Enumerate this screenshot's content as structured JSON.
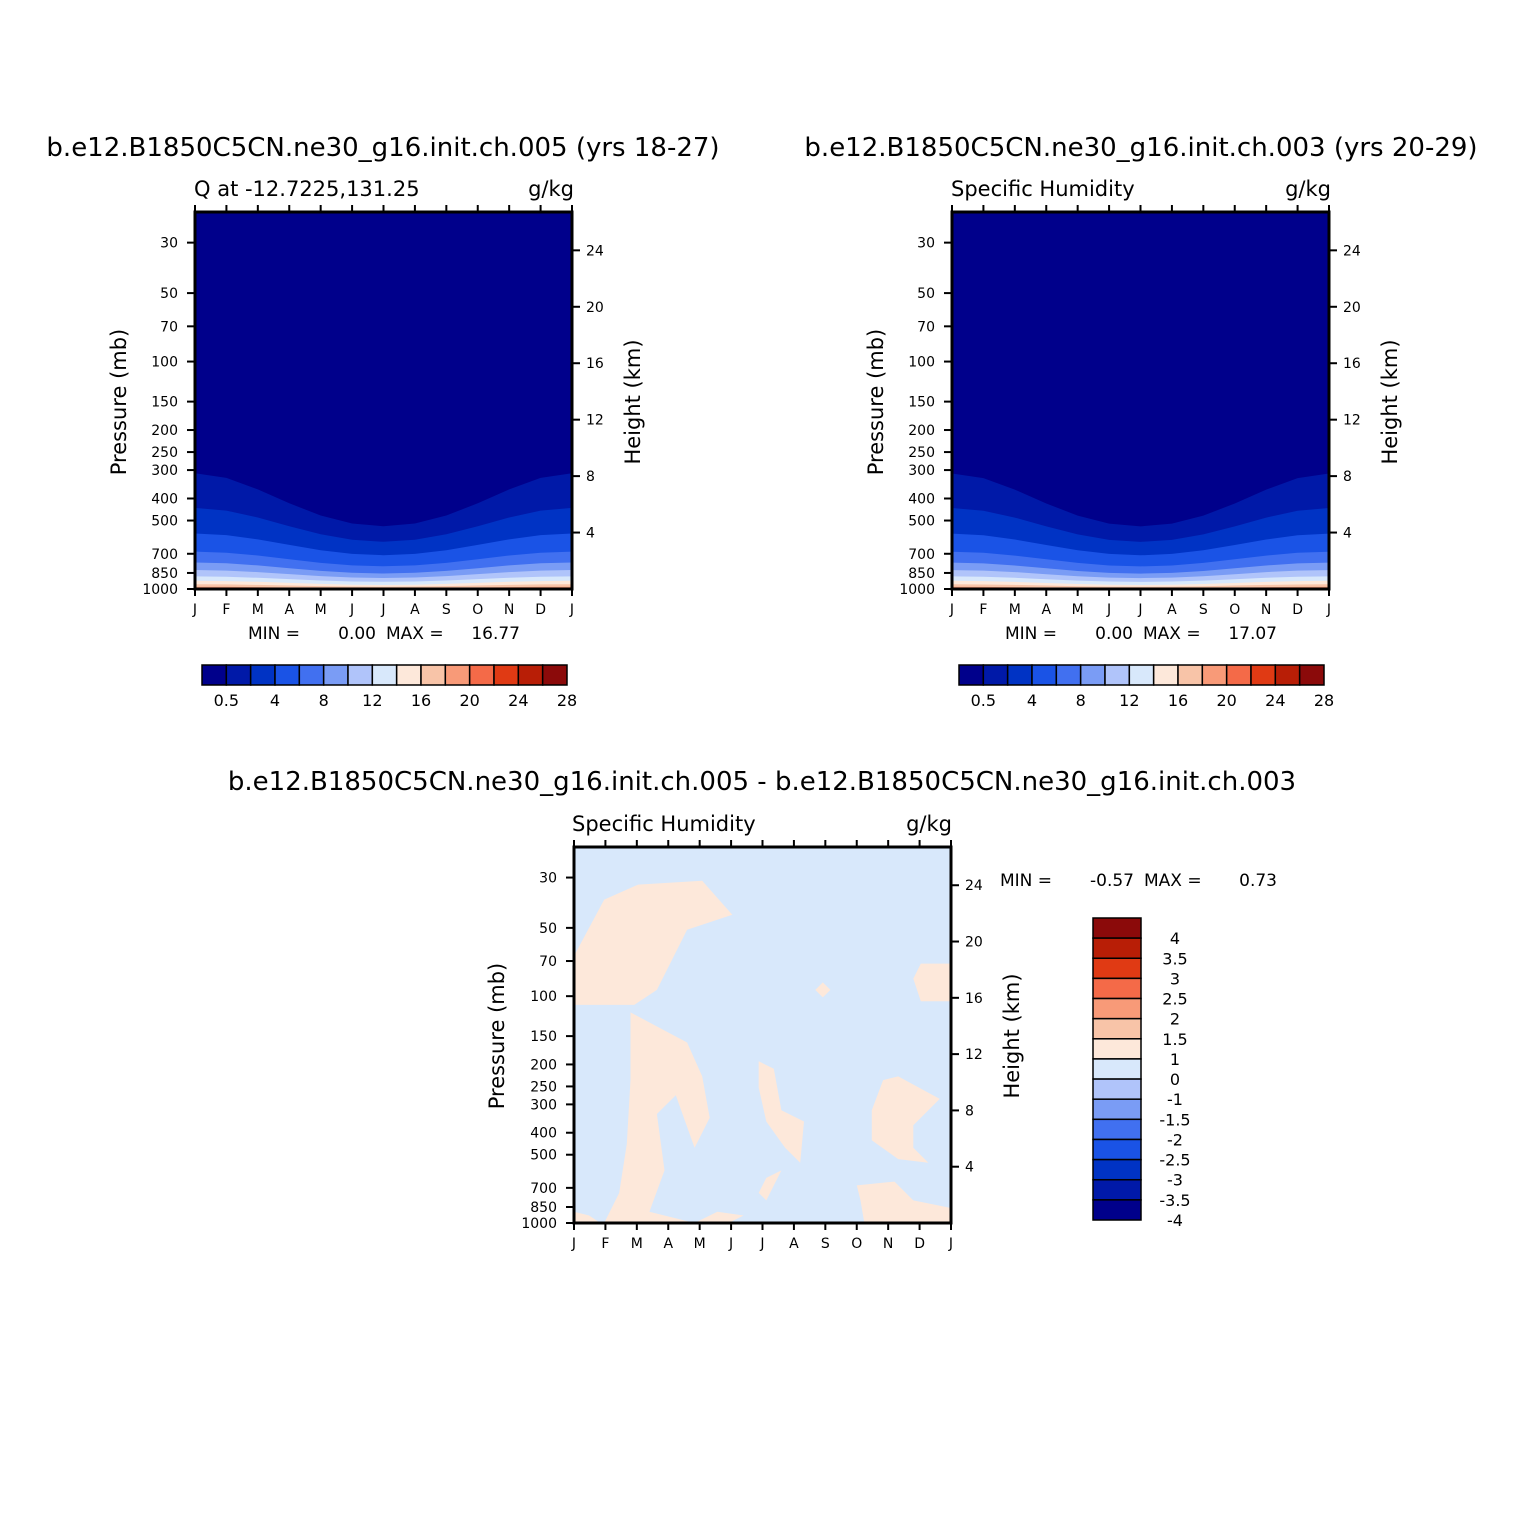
{
  "colors": {
    "fill_levels": [
      "#00008b",
      "#0019a8",
      "#0033c4",
      "#1a53e6",
      "#4170f0",
      "#7a9cf5",
      "#b0c4fa",
      "#d8e8fb",
      "#fde8da",
      "#f8c4a8",
      "#f89a78",
      "#f46a48",
      "#e03a14",
      "#b81e06",
      "#8b0a0a"
    ],
    "diff_levels": [
      "#00008b",
      "#0019a8",
      "#0033c4",
      "#1a53e6",
      "#4170f0",
      "#7a9cf5",
      "#b0c4fa",
      "#d8e8fb",
      "#fde8da",
      "#f8c4a8",
      "#f89a78",
      "#f46a48",
      "#e03a14",
      "#b81e06",
      "#8b0a0a"
    ]
  },
  "chart_data": [
    {
      "type": "heatmap",
      "title": "b.e12.B1850C5CN.ne30_g16.init.ch.005 (yrs 18-27)",
      "left_subtitle": "Q at -12.7225,131.25",
      "right_subtitle": "g/kg",
      "ylabel": "Pressure (mb)",
      "y2label": "Height (km)",
      "months": [
        "J",
        "F",
        "M",
        "A",
        "M",
        "J",
        "J",
        "A",
        "S",
        "O",
        "N",
        "D",
        "J"
      ],
      "pressure_ticks": [
        "30",
        "50",
        "70",
        "100",
        "150",
        "200",
        "250",
        "300",
        "400",
        "500",
        "700",
        "850",
        "1000"
      ],
      "height_ticks": [
        "24",
        "20",
        "16",
        "12",
        "8",
        "4"
      ],
      "stats": {
        "min_label": "MIN =",
        "min": "0.00",
        "max_label": "MAX =",
        "max": "16.77"
      },
      "colorbar_labels": [
        "0.5",
        "4",
        "8",
        "12",
        "16",
        "20",
        "24",
        "28"
      ],
      "min_value": 0.0,
      "max_value": 16.77
    },
    {
      "type": "heatmap",
      "title": "b.e12.B1850C5CN.ne30_g16.init.ch.003 (yrs 20-29)",
      "left_subtitle": "Specific Humidity",
      "right_subtitle": "g/kg",
      "ylabel": "Pressure (mb)",
      "y2label": "Height (km)",
      "months": [
        "J",
        "F",
        "M",
        "A",
        "M",
        "J",
        "J",
        "A",
        "S",
        "O",
        "N",
        "D",
        "J"
      ],
      "pressure_ticks": [
        "30",
        "50",
        "70",
        "100",
        "150",
        "200",
        "250",
        "300",
        "400",
        "500",
        "700",
        "850",
        "1000"
      ],
      "height_ticks": [
        "24",
        "20",
        "16",
        "12",
        "8",
        "4"
      ],
      "stats": {
        "min_label": "MIN =",
        "min": "0.00",
        "max_label": "MAX =",
        "max": "17.07"
      },
      "colorbar_labels": [
        "0.5",
        "4",
        "8",
        "12",
        "16",
        "20",
        "24",
        "28"
      ],
      "min_value": 0.0,
      "max_value": 17.07
    },
    {
      "type": "heatmap",
      "title": "b.e12.B1850C5CN.ne30_g16.init.ch.005 - b.e12.B1850C5CN.ne30_g16.init.ch.003",
      "left_subtitle": "Specific Humidity",
      "right_subtitle": "g/kg",
      "ylabel": "Pressure (mb)",
      "y2label": "Height (km)",
      "months": [
        "J",
        "F",
        "M",
        "A",
        "M",
        "J",
        "J",
        "A",
        "S",
        "O",
        "N",
        "D",
        "J"
      ],
      "pressure_ticks": [
        "30",
        "50",
        "70",
        "100",
        "150",
        "200",
        "250",
        "300",
        "400",
        "500",
        "700",
        "850",
        "1000"
      ],
      "height_ticks": [
        "24",
        "20",
        "16",
        "12",
        "8",
        "4"
      ],
      "stats": {
        "min_label": "MIN =",
        "min": "-0.57",
        "max_label": "MAX =",
        "max": "0.73"
      },
      "colorbar_labels": [
        "4",
        "3.5",
        "3",
        "2.5",
        "2",
        "1.5",
        "1",
        "0",
        "-1",
        "-1.5",
        "-2",
        "-2.5",
        "-3",
        "-3.5",
        "-4"
      ],
      "min_value": -0.57,
      "max_value": 0.73
    }
  ]
}
